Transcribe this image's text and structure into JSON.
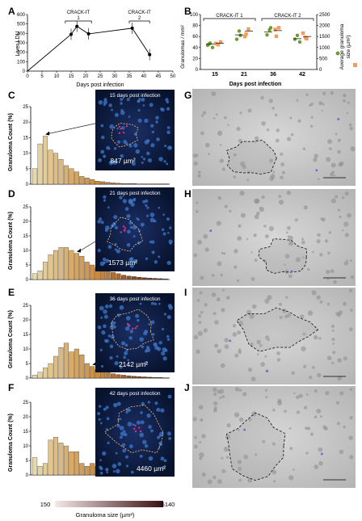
{
  "panel_letters": {
    "A": "A",
    "B": "B",
    "C": "C",
    "D": "D",
    "E": "E",
    "F": "F",
    "G": "G",
    "H": "H",
    "I": "I",
    "J": "J"
  },
  "colors": {
    "bar_ramp_light": "#e8d9a8",
    "bar_ramp_mid": "#c9863a",
    "bar_ramp_dark": "#4a1a12",
    "micro_bg": "#0c1a3a",
    "nucleus": "#3d78c9",
    "ihc_bg": "#c8c8c8",
    "b_green": "#6f9a2e",
    "b_orange": "#f29b5a"
  },
  "chart_data": [
    {
      "id": "A",
      "type": "line",
      "ylabel": "Liver LDU",
      "xlabel": "Days post infection",
      "xticks": [
        "0",
        "5",
        "10",
        "15",
        "20",
        "25",
        "30",
        "35",
        "40",
        "45",
        "50"
      ],
      "yticks": [
        "0",
        "100",
        "200",
        "300",
        "400",
        "500",
        "600"
      ],
      "xlim": [
        0,
        50
      ],
      "ylim": [
        0,
        600
      ],
      "brackets": [
        {
          "label": "CRACK-IT",
          "label2": "1",
          "from": 13,
          "to": 22
        },
        {
          "label": "CRACK-IT",
          "label2": "2",
          "from": 35,
          "to": 42
        }
      ],
      "series": [
        {
          "x": [
            0,
            15,
            17,
            21,
            36,
            42
          ],
          "y": [
            0,
            390,
            475,
            395,
            455,
            175
          ]
        }
      ]
    },
    {
      "id": "B",
      "type": "scatter",
      "ylabel": "Granulomas / mm²",
      "ylabel2": "Average granuloma",
      "ylabel2b": "size (µm²)",
      "xlabel": "Days post infection",
      "categories": [
        "15",
        "21",
        "36",
        "42"
      ],
      "yticks": [
        "0",
        "20",
        "40",
        "60",
        "80",
        "100"
      ],
      "y2ticks": [
        "0",
        "500",
        "1000",
        "1500",
        "2000",
        "2500"
      ],
      "ylim": [
        0,
        100
      ],
      "y2lim": [
        0,
        2500
      ],
      "brackets": [
        {
          "label": "CRACK-IT 1"
        },
        {
          "label": "CRACK-IT 2"
        }
      ],
      "series": [
        {
          "points": [
            [
              0,
              44
            ],
            [
              0,
              48
            ],
            [
              0,
              40
            ],
            [
              0,
              46
            ],
            [
              1,
              62
            ],
            [
              1,
              55
            ],
            [
              1,
              70
            ],
            [
              2,
              76
            ],
            [
              2,
              63
            ],
            [
              2,
              72
            ],
            [
              3,
              55
            ],
            [
              3,
              62
            ],
            [
              3,
              50
            ]
          ],
          "means": [
            46,
            63,
            68,
            56
          ]
        },
        {
          "points": [
            [
              0,
              1180
            ],
            [
              0,
              1130
            ],
            [
              0,
              1250
            ],
            [
              1,
              1610
            ],
            [
              1,
              1840
            ],
            [
              1,
              1500
            ],
            [
              2,
              1510
            ],
            [
              2,
              1900
            ],
            [
              2,
              1820
            ],
            [
              3,
              1400
            ],
            [
              3,
              1650
            ],
            [
              3,
              1450
            ]
          ],
          "means": [
            1190,
            1750,
            1770,
            1500
          ]
        }
      ]
    },
    {
      "id": "C",
      "type": "bar",
      "ylabel": "Granuloma Count (%)",
      "yticks": [
        "0",
        "5",
        "10",
        "15",
        "20",
        "25"
      ],
      "ylim": [
        0,
        25
      ],
      "values": [
        5,
        13,
        15.5,
        11,
        10,
        8,
        6,
        5,
        4,
        2.5,
        2,
        1.5,
        1,
        0.8,
        0.6,
        0.4,
        0.3,
        0.2,
        0.2,
        0.2,
        0.1,
        0.1,
        0.1,
        0.1,
        0.1,
        0.1
      ]
    },
    {
      "id": "D",
      "type": "bar",
      "ylabel": "Granuloma Count (%)",
      "yticks": [
        "0",
        "5",
        "10",
        "15",
        "20",
        "25"
      ],
      "ylim": [
        0,
        25
      ],
      "values": [
        2,
        3,
        6,
        8.5,
        10,
        11,
        11,
        10,
        9,
        8,
        6,
        5,
        4,
        3.5,
        3,
        2.5,
        2,
        1.5,
        1.2,
        1,
        0.8,
        0.6,
        0.5,
        0.4,
        0.3,
        0.2
      ]
    },
    {
      "id": "E",
      "type": "bar",
      "ylabel": "Granuloma Count (%)",
      "yticks": [
        "0",
        "5",
        "10",
        "15",
        "20",
        "25"
      ],
      "ylim": [
        0,
        25
      ],
      "values": [
        1,
        2,
        3.5,
        5,
        7.5,
        10.5,
        12,
        9,
        10,
        8,
        5,
        4,
        3,
        2.5,
        2,
        1.5,
        1.2,
        1,
        0.8,
        0.6,
        0.5,
        0.4,
        0.3,
        0.2,
        0.2,
        0.1
      ]
    },
    {
      "id": "F",
      "type": "bar",
      "ylabel": "Granuloma Count (%)",
      "yticks": [
        "0",
        "5",
        "10",
        "15",
        "20",
        "25"
      ],
      "ylim": [
        0,
        25
      ],
      "values": [
        6,
        3,
        4,
        12,
        13,
        11,
        10,
        8,
        8,
        4,
        3,
        4,
        3,
        2,
        1.5,
        1.2,
        1,
        0.8,
        0.6,
        0.5,
        0.4,
        0.3,
        0.2,
        0.2,
        0.1,
        0.1
      ]
    }
  ],
  "micrographs": [
    {
      "id": "C",
      "caption": "15 days post infection",
      "area": "847 µm²"
    },
    {
      "id": "D",
      "caption": "21 days post infection",
      "area": "1573 µm²"
    },
    {
      "id": "E",
      "caption": "36 days post infection",
      "area": "2142 µm²"
    },
    {
      "id": "F",
      "caption": "42 days post infection",
      "area": "4460 µm²"
    }
  ],
  "size_axis": {
    "min_label": "150",
    "max_label": "6140",
    "title": "Granuloma size (µm²)"
  }
}
